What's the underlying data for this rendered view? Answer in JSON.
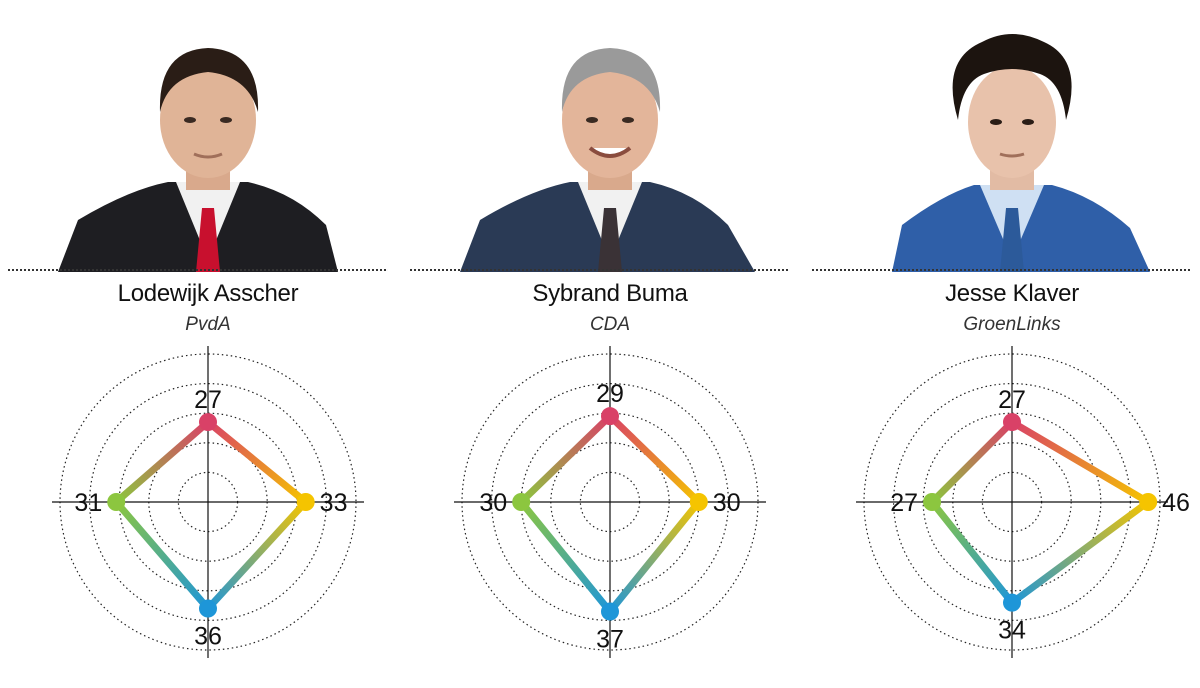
{
  "chart_data": [
    {
      "type": "radar",
      "title": "Lodewijk Asscher",
      "subtitle": "PvdA",
      "axes": [
        "top",
        "right",
        "bottom",
        "left"
      ],
      "values": [
        27,
        33,
        36,
        31
      ],
      "rlim": [
        0,
        50
      ],
      "rings": [
        10,
        20,
        30,
        40,
        50
      ],
      "grid": true,
      "colors": {
        "top": "#d94167",
        "right": "#f5c400",
        "bottom": "#1e96d8",
        "left": "#8cc63f"
      }
    },
    {
      "type": "radar",
      "title": "Sybrand Buma",
      "subtitle": "CDA",
      "axes": [
        "top",
        "right",
        "bottom",
        "left"
      ],
      "values": [
        29,
        30,
        37,
        30
      ],
      "rlim": [
        0,
        50
      ],
      "rings": [
        10,
        20,
        30,
        40,
        50
      ],
      "grid": true,
      "colors": {
        "top": "#d94167",
        "right": "#f5c400",
        "bottom": "#1e96d8",
        "left": "#8cc63f"
      }
    },
    {
      "type": "radar",
      "title": "Jesse Klaver",
      "subtitle": "GroenLinks",
      "axes": [
        "top",
        "right",
        "bottom",
        "left"
      ],
      "values": [
        27,
        46,
        34,
        27
      ],
      "rlim": [
        0,
        50
      ],
      "rings": [
        10,
        20,
        30,
        40,
        50
      ],
      "grid": true,
      "colors": {
        "top": "#d94167",
        "right": "#f5c400",
        "bottom": "#1e96d8",
        "left": "#8cc63f"
      }
    }
  ],
  "candidates": [
    {
      "name": "Lodewijk Asscher",
      "party": "PvdA",
      "tie_color": "#c8102e",
      "suit_color": "#1e1e22",
      "hair": "dark-short"
    },
    {
      "name": "Sybrand Buma",
      "party": "CDA",
      "tie_color": "#3a3236",
      "suit_color": "#2a3a55",
      "hair": "grey-short"
    },
    {
      "name": "Jesse Klaver",
      "party": "GroenLinks",
      "tie_color": "#2c5a9a",
      "suit_color": "#2f5fa8",
      "hair": "dark-curly"
    }
  ]
}
